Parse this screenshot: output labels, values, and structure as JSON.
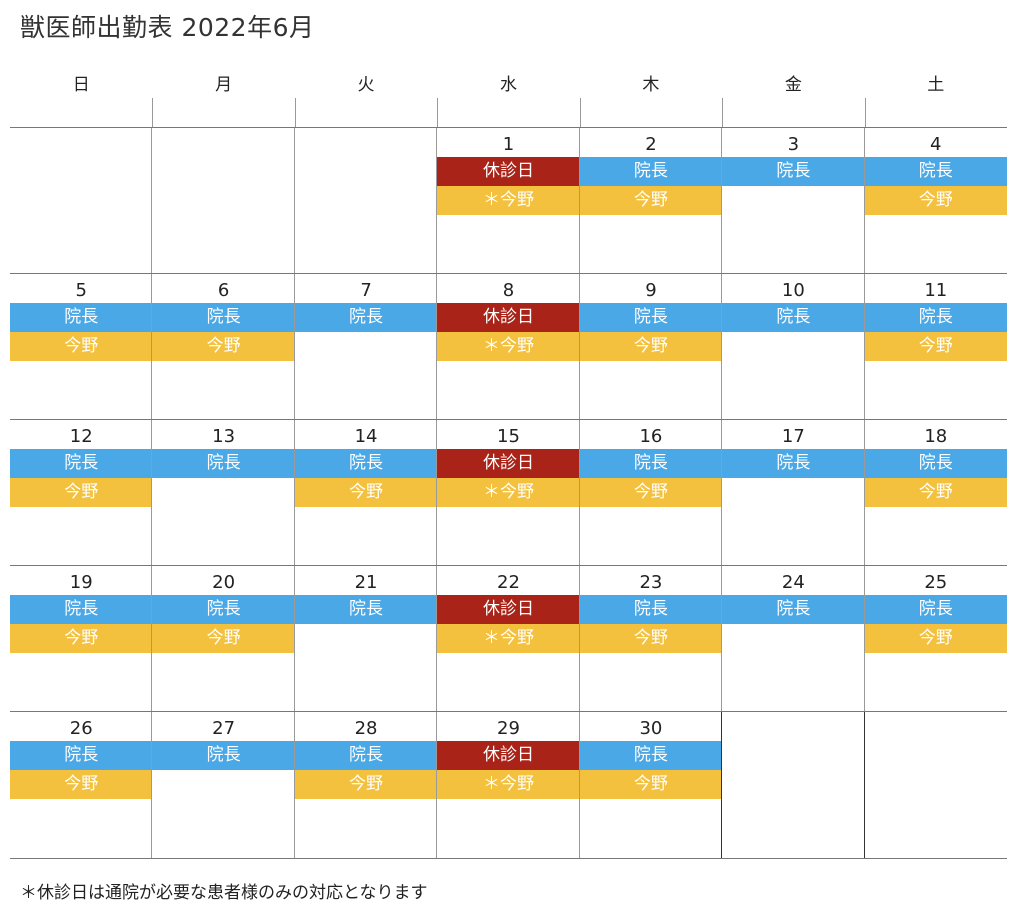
{
  "title": "獣医師出勤表 2022年6月",
  "weekdays": [
    "日",
    "月",
    "火",
    "水",
    "木",
    "金",
    "土"
  ],
  "colors": {
    "doctor": "#4aa8e6",
    "closed": "#aa2318",
    "staff": "#f4c13e"
  },
  "weeks": [
    [
      {
        "day": "",
        "slots": []
      },
      {
        "day": "",
        "slots": []
      },
      {
        "day": "",
        "slots": []
      },
      {
        "day": "1",
        "slots": [
          {
            "label": "休診日",
            "type": "closed"
          },
          {
            "label": "＊今野",
            "type": "staff"
          }
        ]
      },
      {
        "day": "2",
        "slots": [
          {
            "label": "院長",
            "type": "doctor"
          },
          {
            "label": "今野",
            "type": "staff"
          }
        ]
      },
      {
        "day": "3",
        "slots": [
          {
            "label": "院長",
            "type": "doctor"
          }
        ]
      },
      {
        "day": "4",
        "slots": [
          {
            "label": "院長",
            "type": "doctor"
          },
          {
            "label": "今野",
            "type": "staff"
          }
        ]
      }
    ],
    [
      {
        "day": "5",
        "slots": [
          {
            "label": "院長",
            "type": "doctor"
          },
          {
            "label": "今野",
            "type": "staff"
          }
        ]
      },
      {
        "day": "6",
        "slots": [
          {
            "label": "院長",
            "type": "doctor"
          },
          {
            "label": "今野",
            "type": "staff"
          }
        ]
      },
      {
        "day": "7",
        "slots": [
          {
            "label": "院長",
            "type": "doctor"
          }
        ]
      },
      {
        "day": "8",
        "slots": [
          {
            "label": "休診日",
            "type": "closed"
          },
          {
            "label": "＊今野",
            "type": "staff"
          }
        ]
      },
      {
        "day": "9",
        "slots": [
          {
            "label": "院長",
            "type": "doctor"
          },
          {
            "label": "今野",
            "type": "staff"
          }
        ]
      },
      {
        "day": "10",
        "slots": [
          {
            "label": "院長",
            "type": "doctor"
          }
        ]
      },
      {
        "day": "11",
        "slots": [
          {
            "label": "院長",
            "type": "doctor"
          },
          {
            "label": "今野",
            "type": "staff"
          }
        ]
      }
    ],
    [
      {
        "day": "12",
        "slots": [
          {
            "label": "院長",
            "type": "doctor"
          },
          {
            "label": "今野",
            "type": "staff"
          }
        ]
      },
      {
        "day": "13",
        "slots": [
          {
            "label": "院長",
            "type": "doctor"
          }
        ]
      },
      {
        "day": "14",
        "slots": [
          {
            "label": "院長",
            "type": "doctor"
          },
          {
            "label": "今野",
            "type": "staff"
          }
        ]
      },
      {
        "day": "15",
        "slots": [
          {
            "label": "休診日",
            "type": "closed"
          },
          {
            "label": "＊今野",
            "type": "staff"
          }
        ]
      },
      {
        "day": "16",
        "slots": [
          {
            "label": "院長",
            "type": "doctor"
          },
          {
            "label": "今野",
            "type": "staff"
          }
        ]
      },
      {
        "day": "17",
        "slots": [
          {
            "label": "院長",
            "type": "doctor"
          }
        ]
      },
      {
        "day": "18",
        "slots": [
          {
            "label": "院長",
            "type": "doctor"
          },
          {
            "label": "今野",
            "type": "staff"
          }
        ]
      }
    ],
    [
      {
        "day": "19",
        "slots": [
          {
            "label": "院長",
            "type": "doctor"
          },
          {
            "label": "今野",
            "type": "staff"
          }
        ]
      },
      {
        "day": "20",
        "slots": [
          {
            "label": "院長",
            "type": "doctor"
          },
          {
            "label": "今野",
            "type": "staff"
          }
        ]
      },
      {
        "day": "21",
        "slots": [
          {
            "label": "院長",
            "type": "doctor"
          }
        ]
      },
      {
        "day": "22",
        "slots": [
          {
            "label": "休診日",
            "type": "closed"
          },
          {
            "label": "＊今野",
            "type": "staff"
          }
        ]
      },
      {
        "day": "23",
        "slots": [
          {
            "label": "院長",
            "type": "doctor"
          },
          {
            "label": "今野",
            "type": "staff"
          }
        ]
      },
      {
        "day": "24",
        "slots": [
          {
            "label": "院長",
            "type": "doctor"
          }
        ]
      },
      {
        "day": "25",
        "slots": [
          {
            "label": "院長",
            "type": "doctor"
          },
          {
            "label": "今野",
            "type": "staff"
          }
        ]
      }
    ],
    [
      {
        "day": "26",
        "slots": [
          {
            "label": "院長",
            "type": "doctor"
          },
          {
            "label": "今野",
            "type": "staff"
          }
        ]
      },
      {
        "day": "27",
        "slots": [
          {
            "label": "院長",
            "type": "doctor"
          }
        ]
      },
      {
        "day": "28",
        "slots": [
          {
            "label": "院長",
            "type": "doctor"
          },
          {
            "label": "今野",
            "type": "staff"
          }
        ]
      },
      {
        "day": "29",
        "slots": [
          {
            "label": "休診日",
            "type": "closed"
          },
          {
            "label": "＊今野",
            "type": "staff"
          }
        ]
      },
      {
        "day": "30",
        "slots": [
          {
            "label": "院長",
            "type": "doctor"
          },
          {
            "label": "今野",
            "type": "staff"
          }
        ]
      },
      {
        "day": "",
        "slots": []
      },
      {
        "day": "",
        "slots": []
      }
    ]
  ],
  "footnote": "＊休診日は通院が必要な患者様のみの対応となります"
}
